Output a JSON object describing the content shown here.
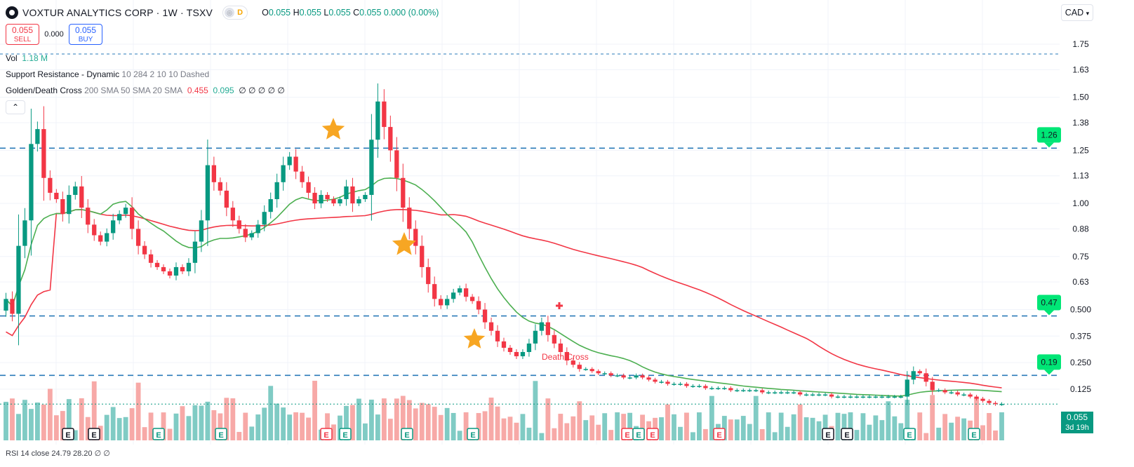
{
  "header": {
    "symbol": "VOXTUR ANALYTICS CORP · 1W · TSXV",
    "toggle_left": "◎",
    "toggle_right": "D",
    "o_label": "O",
    "o_val": "0.055",
    "h_label": "H",
    "h_val": "0.055",
    "l_label": "L",
    "l_val": "0.055",
    "c_label": "C",
    "c_val": "0.055",
    "change": "0.000 (0.00%)"
  },
  "trade": {
    "sell_price": "0.055",
    "sell_label": "SELL",
    "spread": "0.000",
    "buy_price": "0.055",
    "buy_label": "BUY"
  },
  "legend": {
    "vol_label": "Vol",
    "vol_value": "1.18 M",
    "sr_label": "Support Resistance - Dynamic",
    "sr_params": "10 284 2 10 10 Dashed",
    "gdc_label": "Golden/Death Cross",
    "gdc_params": "200 SMA 50 SMA 20 SMA",
    "gdc_val1": "0.455",
    "gdc_val2": "0.095",
    "gdc_rest": "∅ ∅ ∅ ∅ ∅",
    "collapse": "⌃"
  },
  "currency": "CAD",
  "last_price": "0.055",
  "countdown": "3d 19h",
  "rsi_text": "RSI 14 close  24.79  28.20  ∅ ∅",
  "colors": {
    "up": "#089981",
    "down": "#f23645",
    "sma50": "#4caf50",
    "sma200": "#f23645",
    "sr_line": "#2a7ab8",
    "sr_label_bg": "#00e676",
    "star": "#f7a623",
    "vol_up": "#80cbc4",
    "vol_down": "#f7a9a7"
  },
  "chart_data": {
    "type": "candlestick",
    "interval": "1W",
    "y_axis_ticks": [
      "1.75",
      "1.63",
      "1.50",
      "1.38",
      "1.25",
      "1.13",
      "1.00",
      "0.88",
      "0.75",
      "0.63",
      "0.500",
      "0.375",
      "0.250",
      "0.125"
    ],
    "support_resistance_levels": [
      1.26,
      0.47,
      0.19
    ],
    "support_resistance_labels": [
      "1.26",
      "0.47",
      "0.19"
    ],
    "cross_label": "Death Cross",
    "earnings_marker": "E",
    "close_series": [
      0.55,
      0.48,
      0.8,
      0.92,
      1.28,
      1.35,
      1.12,
      1.05,
      1.02,
      0.95,
      1.04,
      1.08,
      0.98,
      0.9,
      0.85,
      0.82,
      0.86,
      0.92,
      0.95,
      0.98,
      0.88,
      0.8,
      0.76,
      0.72,
      0.7,
      0.68,
      0.66,
      0.7,
      0.68,
      0.72,
      0.82,
      0.92,
      1.18,
      1.1,
      1.06,
      0.98,
      0.92,
      0.88,
      0.84,
      0.86,
      0.9,
      0.96,
      1.02,
      1.1,
      1.18,
      1.22,
      1.15,
      1.1,
      1.05,
      1.0,
      1.04,
      1.02,
      1.0,
      1.02,
      1.08,
      1.0,
      1.02,
      1.04,
      1.3,
      1.48,
      1.36,
      1.25,
      1.12,
      0.98,
      0.88,
      0.8,
      0.7,
      0.62,
      0.55,
      0.52,
      0.55,
      0.58,
      0.6,
      0.56,
      0.54,
      0.5,
      0.44,
      0.4,
      0.35,
      0.32,
      0.3,
      0.28,
      0.3,
      0.34,
      0.4,
      0.44,
      0.38,
      0.34,
      0.3,
      0.26,
      0.24,
      0.22,
      0.22,
      0.21,
      0.2,
      0.2,
      0.19,
      0.19,
      0.18,
      0.18,
      0.19,
      0.18,
      0.17,
      0.16,
      0.16,
      0.15,
      0.15,
      0.15,
      0.14,
      0.14,
      0.14,
      0.13,
      0.13,
      0.13,
      0.13,
      0.12,
      0.12,
      0.12,
      0.12,
      0.12,
      0.11,
      0.11,
      0.11,
      0.11,
      0.11,
      0.11,
      0.1,
      0.1,
      0.1,
      0.1,
      0.1,
      0.09,
      0.09,
      0.09,
      0.09,
      0.09,
      0.09,
      0.09,
      0.09,
      0.09,
      0.09,
      0.09,
      0.09,
      0.17,
      0.21,
      0.2,
      0.16,
      0.12,
      0.12,
      0.11,
      0.11,
      0.1,
      0.1,
      0.09,
      0.08,
      0.07,
      0.06,
      0.055,
      0.055
    ]
  }
}
